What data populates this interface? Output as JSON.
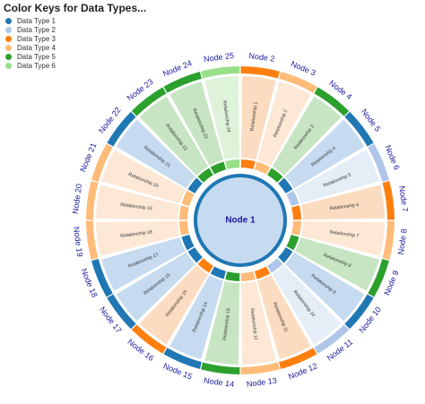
{
  "legend": {
    "title": "Color Keys for Data Types...",
    "items": [
      {
        "label": "Data Type 1",
        "color": "#1f77b4"
      },
      {
        "label": "Data Type 2",
        "color": "#aec7e8"
      },
      {
        "label": "Data Type 3",
        "color": "#ff7f0e"
      },
      {
        "label": "Data Type 4",
        "color": "#ffbb78"
      },
      {
        "label": "Data Type 5",
        "color": "#2ca02c"
      },
      {
        "label": "Data Type 6",
        "color": "#98df8a"
      }
    ]
  },
  "center": {
    "label": "Node 1",
    "fill": "#c6dbef",
    "stroke": "#1f77b4"
  },
  "segments": [
    {
      "node": "Node 2",
      "relationship": "Relationship 1",
      "type": 3
    },
    {
      "node": "Node 3",
      "relationship": "Relationship 2",
      "type": 4
    },
    {
      "node": "Node 4",
      "relationship": "Relationship 3",
      "type": 5
    },
    {
      "node": "Node 5",
      "relationship": "Relationship 4",
      "type": 1
    },
    {
      "node": "Node 6",
      "relationship": "Relationship 5",
      "type": 2
    },
    {
      "node": "Node 7",
      "relationship": "Relationship 6",
      "type": 3
    },
    {
      "node": "Node 8",
      "relationship": "Relationship 7",
      "type": 4
    },
    {
      "node": "Node 9",
      "relationship": "Relationship 8",
      "type": 5
    },
    {
      "node": "Node 10",
      "relationship": "Relationship 9",
      "type": 1
    },
    {
      "node": "Node 11",
      "relationship": "Relationship 10",
      "type": 2
    },
    {
      "node": "Node 12",
      "relationship": "Relationship 11",
      "type": 3
    },
    {
      "node": "Node 13",
      "relationship": "Relationship 12",
      "type": 4
    },
    {
      "node": "Node 14",
      "relationship": "Relationship 13",
      "type": 5
    },
    {
      "node": "Node 15",
      "relationship": "Relationship 14",
      "type": 1
    },
    {
      "node": "Node 16",
      "relationship": "Relationship 15",
      "type": 3
    },
    {
      "node": "Node 17",
      "relationship": "Relationship 16",
      "type": 1
    },
    {
      "node": "Node 18",
      "relationship": "Relationship 17",
      "type": 1
    },
    {
      "node": "Node 19",
      "relationship": "Relationship 18",
      "type": 4
    },
    {
      "node": "Node 20",
      "relationship": "Relationship 19",
      "type": 4
    },
    {
      "node": "Node 21",
      "relationship": "Relationship 20",
      "type": 4
    },
    {
      "node": "Node 22",
      "relationship": "Relationship 21",
      "type": 1
    },
    {
      "node": "Node 23",
      "relationship": "Relationship 22",
      "type": 5
    },
    {
      "node": "Node 24",
      "relationship": "Relationship 23",
      "type": 5
    },
    {
      "node": "Node 25",
      "relationship": "Relationship 24",
      "type": 6
    }
  ],
  "colors": {
    "1": {
      "solid": "#1f77b4",
      "light": "#c6dbef"
    },
    "2": {
      "solid": "#aec7e8",
      "light": "#e5edf6"
    },
    "3": {
      "solid": "#ff7f0e",
      "light": "#fcdcc0"
    },
    "4": {
      "solid": "#ffbb78",
      "light": "#fde8d5"
    },
    "5": {
      "solid": "#2ca02c",
      "light": "#c7e5c2"
    },
    "6": {
      "solid": "#98df8a",
      "light": "#dff2da"
    },
    "node_label": "#1a1aa0"
  }
}
